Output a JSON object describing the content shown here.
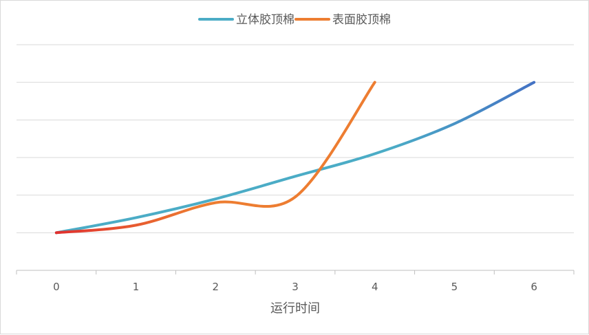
{
  "chart_data": {
    "type": "line",
    "title": "",
    "xlabel": "运行时间",
    "ylabel": "",
    "x_ticks": [
      "0",
      "1",
      "2",
      "3",
      "4",
      "5",
      "6"
    ],
    "xlim": [
      -0.5,
      6.5
    ],
    "ylim": [
      0,
      6
    ],
    "grid": "horizontal",
    "y_tick_labels_visible": false,
    "legend": "top-center",
    "series": [
      {
        "name": "立体胶顶棉",
        "color": "#4bacc6",
        "end_color": "#4472c4",
        "x": [
          0,
          1,
          2,
          3,
          4,
          5,
          6
        ],
        "y": [
          1,
          1.4,
          1.9,
          2.5,
          3.1,
          3.9,
          5
        ]
      },
      {
        "name": "表面胶顶棉",
        "color": "#ed7d31",
        "start_color": "#e0302f",
        "x": [
          0,
          1,
          2,
          3,
          4
        ],
        "y": [
          1,
          1.2,
          1.8,
          1.95,
          5
        ]
      }
    ]
  }
}
